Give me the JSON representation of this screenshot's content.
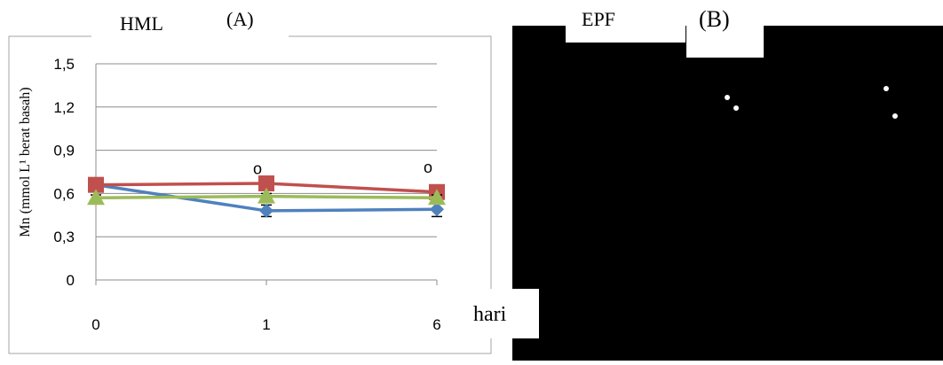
{
  "chart_data": [
    {
      "panel": "(A)",
      "type": "line",
      "title": "HML",
      "xlabel": "hari",
      "ylabel": "Mn  (mmol L¹ berat basah)",
      "categories": [
        "0",
        "1",
        "6"
      ],
      "yticks": [
        "0",
        "0,3",
        "0,6",
        "0,9",
        "1,2",
        "1,5"
      ],
      "ylim": [
        0,
        1.5
      ],
      "grid": true,
      "legend": "none",
      "series": [
        {
          "color": "#4f81bd",
          "marker": "diamond",
          "values": [
            0.66,
            0.48,
            0.49
          ],
          "errors": [
            0.02,
            0.04,
            0.05
          ]
        },
        {
          "color": "#c0504d",
          "marker": "square",
          "values": [
            0.66,
            0.67,
            0.61
          ],
          "errors": [
            0.01,
            0.01,
            0.02
          ]
        },
        {
          "color": "#9bbb59",
          "marker": "triangle",
          "values": [
            0.57,
            0.58,
            0.57
          ],
          "errors": [
            0.02,
            0.02,
            0.02
          ]
        }
      ],
      "annotations": [
        {
          "text": "o",
          "category": "1",
          "y": 0.77
        },
        {
          "text": "o",
          "category": "6",
          "y": 0.78
        }
      ]
    },
    {
      "panel": "(B)",
      "type": "line",
      "title": "EPF",
      "note": "plot area rendered fully black"
    }
  ]
}
